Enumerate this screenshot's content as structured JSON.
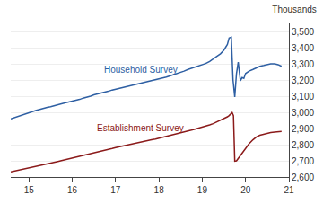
{
  "chart_data": {
    "type": "line",
    "title": "Thousands",
    "xlim": [
      14.58,
      21.0
    ],
    "ylim": [
      2600,
      3550
    ],
    "xticks": [
      15,
      16,
      17,
      18,
      19,
      20,
      21
    ],
    "yticks": [
      {
        "value": 2600,
        "label": "2,600"
      },
      {
        "value": 2700,
        "label": "2,700"
      },
      {
        "value": 2800,
        "label": "2,800"
      },
      {
        "value": 2900,
        "label": "2,900"
      },
      {
        "value": 3000,
        "label": "3,000"
      },
      {
        "value": 3100,
        "label": "3,100"
      },
      {
        "value": 3200,
        "label": "3,200"
      },
      {
        "value": 3300,
        "label": "3,300"
      },
      {
        "value": 3400,
        "label": "3,400"
      },
      {
        "value": 3500,
        "label": "3,500"
      }
    ],
    "grid": true,
    "series": [
      {
        "name": "Household Survey",
        "color": "#2E5FA3",
        "x": [
          14.58,
          14.67,
          14.75,
          14.83,
          14.92,
          15.0,
          15.08,
          15.17,
          15.25,
          15.33,
          15.42,
          15.5,
          15.58,
          15.67,
          15.75,
          15.83,
          15.92,
          16.0,
          16.08,
          16.17,
          16.25,
          16.33,
          16.42,
          16.5,
          16.58,
          16.67,
          16.75,
          16.83,
          16.92,
          17.0,
          17.08,
          17.17,
          17.25,
          17.33,
          17.42,
          17.5,
          17.58,
          17.67,
          17.75,
          17.83,
          17.92,
          18.0,
          18.08,
          18.17,
          18.25,
          18.33,
          18.42,
          18.5,
          18.58,
          18.67,
          18.75,
          18.83,
          18.92,
          19.0,
          19.08,
          19.17,
          19.25,
          19.33,
          19.42,
          19.5,
          19.58,
          19.62,
          19.67,
          19.71,
          19.75,
          19.79,
          19.83,
          19.88,
          19.92,
          19.96,
          20.0,
          20.08,
          20.17,
          20.25,
          20.33,
          20.42,
          20.5,
          20.58,
          20.67,
          20.75,
          20.83
        ],
        "values": [
          2960,
          2968,
          2975,
          2982,
          2990,
          3000,
          3008,
          3012,
          3018,
          3025,
          3030,
          3035,
          3042,
          3048,
          3053,
          3058,
          3063,
          3068,
          3073,
          3080,
          3088,
          3093,
          3100,
          3108,
          3113,
          3118,
          3123,
          3130,
          3138,
          3143,
          3150,
          3155,
          3160,
          3165,
          3170,
          3175,
          3180,
          3185,
          3190,
          3195,
          3200,
          3205,
          3212,
          3218,
          3225,
          3232,
          3238,
          3245,
          3255,
          3265,
          3272,
          3278,
          3285,
          3292,
          3302,
          3315,
          3328,
          3345,
          3362,
          3385,
          3420,
          3460,
          3465,
          3200,
          3095,
          3240,
          3310,
          3195,
          3215,
          3210,
          3240,
          3255,
          3265,
          3275,
          3285,
          3290,
          3295,
          3300,
          3300,
          3295,
          3285
        ]
      },
      {
        "name": "Establishment Survey",
        "color": "#8B1A1A",
        "x": [
          14.58,
          14.67,
          14.75,
          14.83,
          14.92,
          15.0,
          15.08,
          15.17,
          15.25,
          15.33,
          15.42,
          15.5,
          15.58,
          15.67,
          15.75,
          15.83,
          15.92,
          16.0,
          16.08,
          16.17,
          16.25,
          16.33,
          16.42,
          16.5,
          16.58,
          16.67,
          16.75,
          16.83,
          16.92,
          17.0,
          17.08,
          17.17,
          17.25,
          17.33,
          17.42,
          17.5,
          17.58,
          17.67,
          17.75,
          17.83,
          17.92,
          18.0,
          18.08,
          18.17,
          18.25,
          18.33,
          18.42,
          18.5,
          18.58,
          18.67,
          18.75,
          18.83,
          18.92,
          19.0,
          19.08,
          19.17,
          19.25,
          19.33,
          19.42,
          19.5,
          19.58,
          19.62,
          19.66,
          19.69,
          19.72,
          19.75,
          19.79,
          19.83,
          19.88,
          19.92,
          20.0,
          20.08,
          20.17,
          20.25,
          20.33,
          20.42,
          20.5,
          20.58,
          20.67,
          20.75,
          20.83
        ],
        "values": [
          2632,
          2637,
          2641,
          2646,
          2651,
          2656,
          2661,
          2666,
          2671,
          2676,
          2681,
          2686,
          2691,
          2696,
          2701,
          2706,
          2710,
          2715,
          2720,
          2726,
          2732,
          2737,
          2742,
          2748,
          2754,
          2760,
          2765,
          2770,
          2776,
          2782,
          2787,
          2793,
          2798,
          2803,
          2808,
          2812,
          2817,
          2822,
          2826,
          2830,
          2835,
          2840,
          2845,
          2850,
          2856,
          2862,
          2867,
          2873,
          2878,
          2884,
          2890,
          2896,
          2902,
          2908,
          2915,
          2922,
          2930,
          2940,
          2950,
          2960,
          2972,
          2980,
          2990,
          2998,
          2980,
          2698,
          2700,
          2715,
          2728,
          2745,
          2775,
          2805,
          2830,
          2848,
          2858,
          2865,
          2870,
          2875,
          2878,
          2880,
          2882
        ]
      }
    ]
  }
}
